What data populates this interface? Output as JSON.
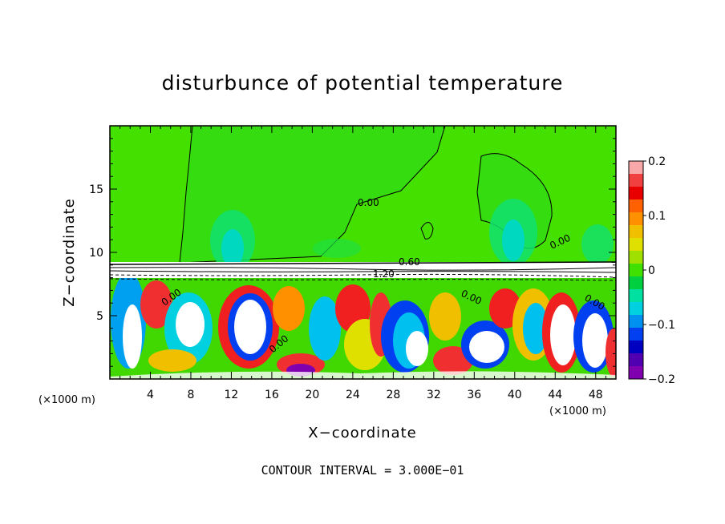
{
  "chart_data": {
    "type": "heatmap",
    "title": "disturbunce of potential temperature",
    "xlabel": "X−coordinate",
    "ylabel": "Z−coordinate",
    "x_unit": "(×1000 m)",
    "xlim": [
      0,
      50
    ],
    "ylim": [
      0,
      20
    ],
    "x_ticks": [
      4,
      8,
      12,
      16,
      20,
      24,
      28,
      32,
      36,
      40,
      44,
      48
    ],
    "y_ticks": [
      5,
      10,
      15
    ],
    "colorbar": {
      "min": -0.2,
      "max": 0.2,
      "ticks": [
        "0.2",
        "0.1",
        "0",
        "−0.1",
        "−0.2"
      ],
      "colors": [
        "#f8a8a8",
        "#f04040",
        "#e80000",
        "#ff6000",
        "#ff9000",
        "#f0c000",
        "#e0e000",
        "#a0e000",
        "#40e000",
        "#00d040",
        "#00e0a0",
        "#00d0e0",
        "#0090f0",
        "#0040f0",
        "#0000c0",
        "#5000b0",
        "#8000b0"
      ]
    },
    "contour_labels": [
      "0.00",
      "0.60",
      "1.20",
      "0.00",
      "0.00",
      "0.00",
      "0.00",
      "0.00"
    ],
    "annotation": "CONTOUR INTERVAL = 3.000E−01"
  }
}
